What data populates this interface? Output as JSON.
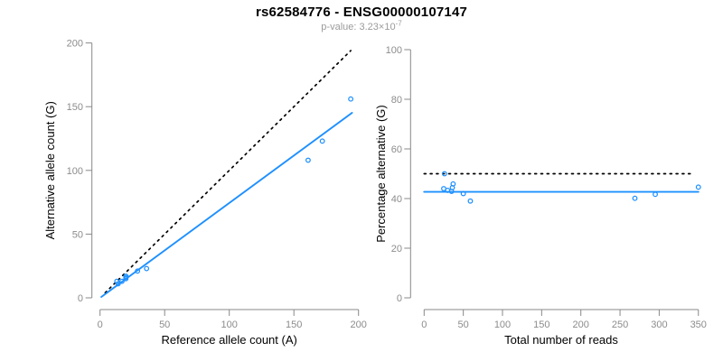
{
  "header": {
    "title": "rs62584776 - ENSG00000107147",
    "p_value_prefix": "p-value: 3.23×10",
    "p_value_exponent": "-7"
  },
  "colors": {
    "accent_blue": "#1E90FF",
    "axis_gray": "#888888",
    "tick_label_gray": "#8c8c8c",
    "axis_title_black": "#000000",
    "identity_line_black": "#000000",
    "background": "#ffffff"
  },
  "chart_data": [
    {
      "name": "allele-counts-plot",
      "type": "scatter",
      "xlabel": "Reference allele count (A)",
      "ylabel": "Alternative allele count (G)",
      "xlim": [
        0,
        200
      ],
      "ylim": [
        0,
        200
      ],
      "xticks": [
        0,
        50,
        100,
        150,
        200
      ],
      "yticks": [
        0,
        50,
        100,
        150,
        200
      ],
      "grid": false,
      "marker": "open-circle",
      "points": [
        [
          13,
          13
        ],
        [
          14,
          11
        ],
        [
          17,
          13
        ],
        [
          20,
          15
        ],
        [
          20,
          16
        ],
        [
          20,
          17
        ],
        [
          29,
          21
        ],
        [
          36,
          23
        ],
        [
          161,
          108
        ],
        [
          172,
          123
        ],
        [
          194,
          156
        ]
      ],
      "lines": [
        {
          "name": "identity-line",
          "style": "dotted",
          "color_key": "identity_line_black",
          "from": [
            4,
            4
          ],
          "to": [
            194,
            194
          ]
        },
        {
          "name": "fit-line",
          "style": "solid",
          "color_key": "accent_blue",
          "from": [
            1,
            0.7
          ],
          "to": [
            195,
            145.2
          ]
        }
      ]
    },
    {
      "name": "percentage-vs-reads-plot",
      "type": "scatter",
      "xlabel": "Total number of reads",
      "ylabel": "Percentage alternative (G)",
      "xlim": [
        0,
        350
      ],
      "ylim": [
        0,
        100
      ],
      "xticks": [
        0,
        50,
        100,
        150,
        200,
        250,
        300,
        350
      ],
      "yticks": [
        0,
        20,
        40,
        60,
        80,
        100
      ],
      "grid": false,
      "marker": "open-circle",
      "points": [
        [
          26,
          50
        ],
        [
          25,
          44
        ],
        [
          30,
          43.3
        ],
        [
          35,
          42.9
        ],
        [
          36,
          44.4
        ],
        [
          37,
          45.9
        ],
        [
          50,
          42
        ],
        [
          59,
          39
        ],
        [
          269,
          40.1
        ],
        [
          295,
          41.7
        ],
        [
          350,
          44.6
        ]
      ],
      "lines": [
        {
          "name": "expected-ratio-line",
          "style": "dotted",
          "color_key": "identity_line_black",
          "from": [
            0,
            50
          ],
          "to": [
            345,
            50
          ]
        },
        {
          "name": "fit-line",
          "style": "solid",
          "color_key": "accent_blue",
          "from": [
            0,
            42.7
          ],
          "to": [
            350,
            42.7
          ]
        }
      ]
    }
  ]
}
